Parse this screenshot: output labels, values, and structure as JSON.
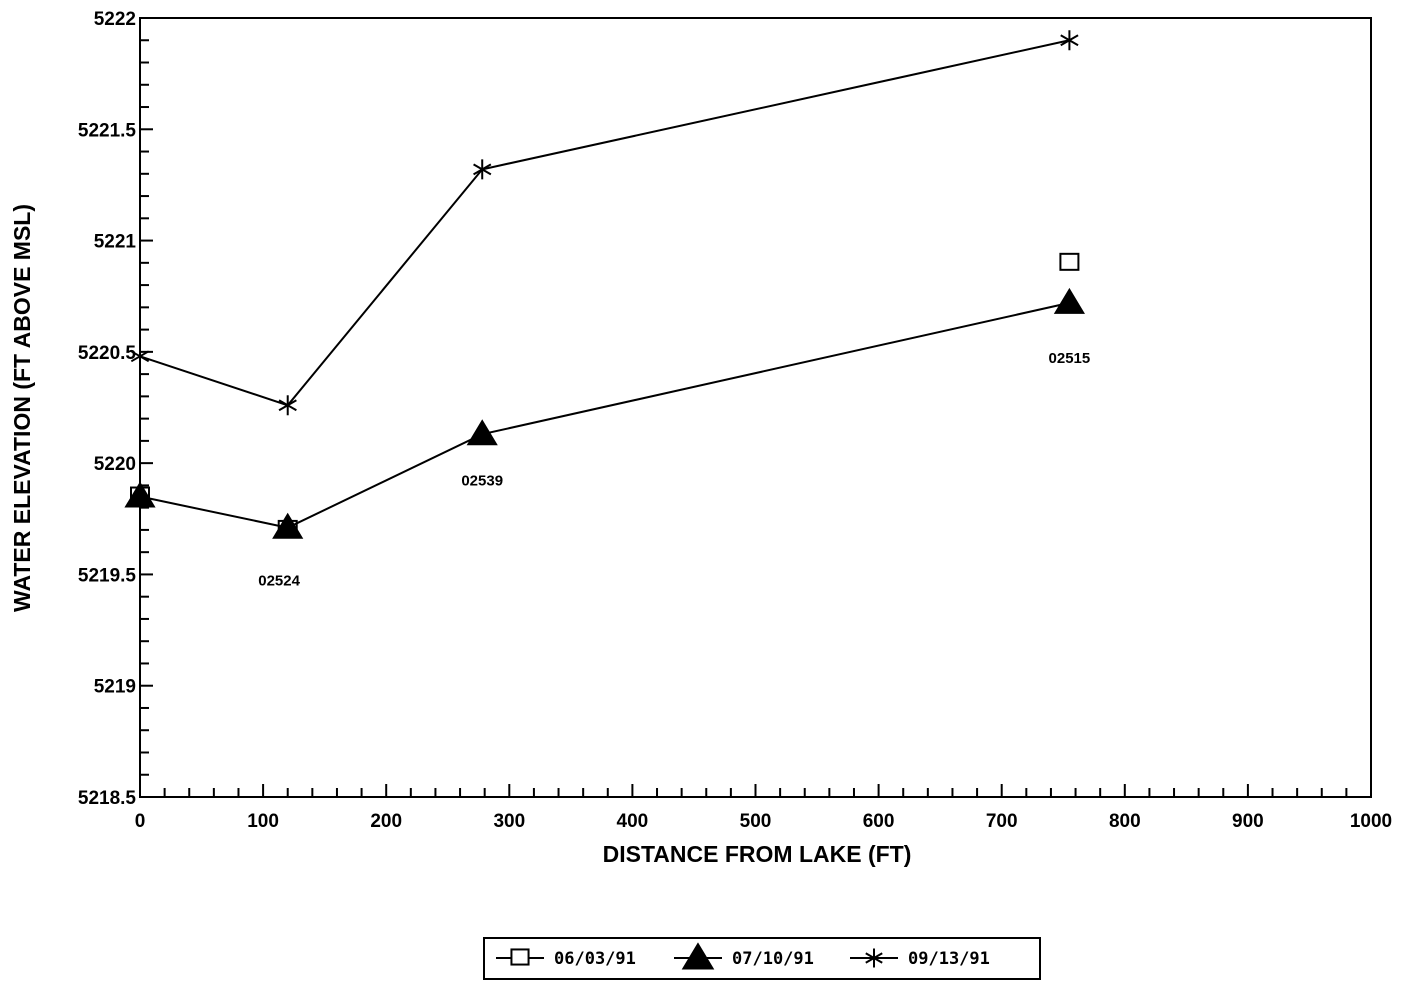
{
  "chart_data": {
    "type": "line",
    "xlabel": "DISTANCE FROM LAKE (FT)",
    "ylabel": "WATER ELEVATION (FT ABOVE MSL)",
    "xlim": [
      0,
      1000
    ],
    "ylim": [
      5218.5,
      5222
    ],
    "x_ticks": [
      "0",
      "100",
      "200",
      "300",
      "400",
      "500",
      "600",
      "700",
      "800",
      "900",
      "1000"
    ],
    "y_ticks": [
      "5218.5",
      "5219",
      "5219.5",
      "5220",
      "5220.5",
      "5221",
      "5221.5",
      "5222"
    ],
    "grid": false,
    "legend_position": "bottom-center",
    "series": [
      {
        "name": "06/03/91",
        "marker": "square",
        "connected": false,
        "x": [
          0,
          120,
          755
        ],
        "y": [
          5219.85,
          5219.7,
          5220.9
        ]
      },
      {
        "name": "07/10/91",
        "marker": "triangle",
        "connected": true,
        "x": [
          0,
          120,
          278,
          755
        ],
        "y": [
          5219.85,
          5219.71,
          5220.13,
          5220.72
        ]
      },
      {
        "name": "09/13/91",
        "marker": "asterisk",
        "connected": true,
        "x": [
          0,
          120,
          278,
          755
        ],
        "y": [
          5220.48,
          5220.26,
          5221.32,
          5221.9
        ]
      }
    ],
    "annotations": [
      {
        "text": "02524",
        "x": 113,
        "y": 5219.45
      },
      {
        "text": "02539",
        "x": 278,
        "y": 5219.9
      },
      {
        "text": "02515",
        "x": 755,
        "y": 5220.45
      }
    ]
  }
}
